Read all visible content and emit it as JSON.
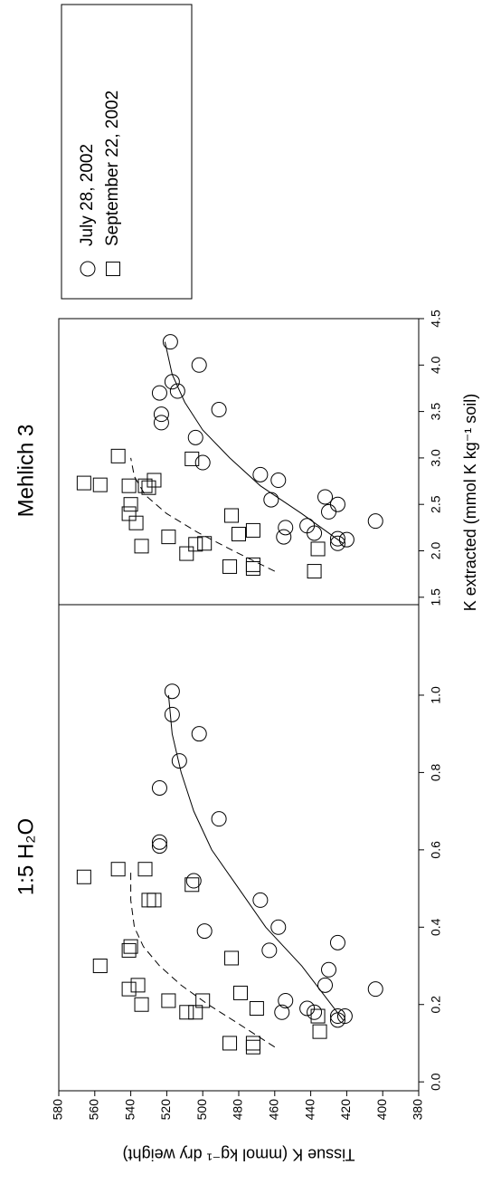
{
  "chart_data": [
    {
      "type": "scatter",
      "title": "1:5 H₂O",
      "y_label": "Tissue K (mmol kg⁻¹ dry weight)",
      "xlim": [
        -0.023,
        1.234
      ],
      "ylim": [
        380,
        580
      ],
      "xticks": [
        {
          "value": 0.0,
          "label": "0.0"
        },
        0.2,
        0.4,
        0.6,
        0.8,
        {
          "value": 1.0,
          "label": "1.0"
        }
      ],
      "yticks": [
        380,
        400,
        420,
        440,
        460,
        480,
        500,
        520,
        540,
        560,
        580
      ],
      "series": [
        {
          "marker": "circle",
          "color": "#000000",
          "x": [
            1.01,
            0.95,
            0.83,
            0.9,
            0.76,
            0.62,
            0.61,
            0.68,
            0.52,
            0.39,
            0.47,
            0.4,
            0.34,
            0.36,
            0.29,
            0.25,
            0.24,
            0.21,
            0.18,
            0.19,
            0.18,
            0.17,
            0.16,
            0.17
          ],
          "values": [
            517,
            517,
            513,
            502,
            524,
            524,
            524,
            491,
            505,
            499,
            468,
            458,
            463,
            425,
            430,
            432,
            404,
            454,
            456,
            442,
            438,
            421,
            425,
            425
          ]
        },
        {
          "marker": "square",
          "color": "#000000",
          "x": [
            0.53,
            0.55,
            0.3,
            0.55,
            0.47,
            0.47,
            0.51,
            0.35,
            0.34,
            0.24,
            0.25,
            0.2,
            0.21,
            0.21,
            0.18,
            0.18,
            0.32,
            0.23,
            0.19,
            0.1,
            0.1,
            0.09,
            0.17,
            0.13
          ],
          "values": [
            566,
            547,
            557,
            532,
            530,
            527,
            506,
            540,
            541,
            541,
            536,
            534,
            519,
            500,
            509,
            504,
            484,
            479,
            470,
            485,
            472,
            472,
            436,
            435
          ]
        }
      ],
      "fits": [
        {
          "dash": false,
          "x": [
            0.16,
            0.3,
            0.4,
            0.5,
            0.6,
            0.7,
            0.8,
            0.9,
            1.0
          ],
          "values": [
            422,
            445,
            465,
            480,
            495,
            505,
            512,
            517,
            519
          ]
        },
        {
          "dash": true,
          "x": [
            0.09,
            0.15,
            0.2,
            0.25,
            0.3,
            0.35,
            0.4,
            0.47,
            0.55
          ],
          "values": [
            460,
            480,
            497,
            512,
            524,
            533,
            538,
            540,
            540
          ]
        }
      ]
    },
    {
      "type": "scatter",
      "title": "Mehlich 3",
      "x_label": "K extracted (mmol K kg⁻¹ soil)",
      "xlim": [
        1.42,
        4.5
      ],
      "ylim": [
        380,
        580
      ],
      "xticks": [
        1.5,
        {
          "value": 2.0,
          "label": "2.0"
        },
        2.5,
        {
          "value": 3.0,
          "label": "3.0"
        },
        3.5,
        {
          "value": 4.0,
          "label": "4.0"
        },
        4.5
      ],
      "legend": "outside-right",
      "series": [
        {
          "name": "July 28, 2002",
          "marker": "circle",
          "color": "#000000",
          "x": [
            4.25,
            4.0,
            3.82,
            3.72,
            3.7,
            3.47,
            3.38,
            3.52,
            3.22,
            2.95,
            2.82,
            2.76,
            2.55,
            2.58,
            2.42,
            2.5,
            2.32,
            2.25,
            2.15,
            2.27,
            2.19,
            2.12,
            2.08,
            2.13
          ],
          "values": [
            518,
            502,
            517,
            514,
            524,
            523,
            523,
            491,
            504,
            500,
            468,
            458,
            462,
            432,
            430,
            425,
            404,
            454,
            455,
            442,
            438,
            420,
            425,
            425
          ]
        },
        {
          "name": "September 22, 2002",
          "marker": "square",
          "color": "#000000",
          "x": [
            2.73,
            3.02,
            2.71,
            2.7,
            2.68,
            2.76,
            2.99,
            2.7,
            2.5,
            2.4,
            2.3,
            2.05,
            2.15,
            2.08,
            1.97,
            2.07,
            2.38,
            2.18,
            2.22,
            1.83,
            1.85,
            1.81,
            2.02,
            1.78
          ],
          "values": [
            566,
            547,
            557,
            532,
            530,
            527,
            506,
            541,
            540,
            541,
            537,
            534,
            519,
            499,
            509,
            504,
            484,
            480,
            472,
            485,
            472,
            472,
            436,
            438
          ]
        }
      ],
      "fits": [
        {
          "dash": false,
          "x": [
            2.08,
            2.4,
            2.7,
            3.0,
            3.3,
            3.6,
            3.9,
            4.25
          ],
          "values": [
            422,
            445,
            468,
            485,
            500,
            510,
            517,
            521
          ]
        },
        {
          "dash": true,
          "x": [
            1.78,
            2.0,
            2.2,
            2.4,
            2.6,
            2.8,
            3.0
          ],
          "values": [
            460,
            483,
            503,
            520,
            532,
            538,
            540
          ]
        }
      ]
    }
  ]
}
